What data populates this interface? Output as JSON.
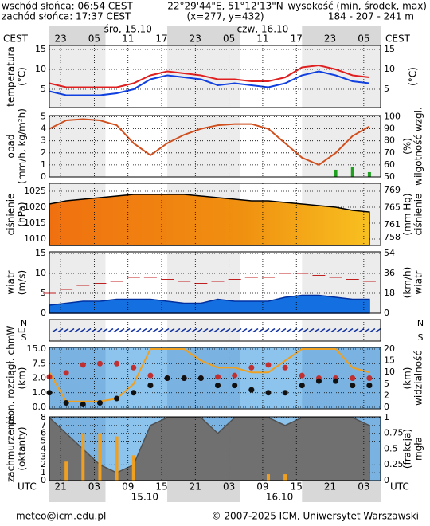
{
  "header": {
    "sunrise": "wschód słońca: 06:54 CEST",
    "sunset": "zachód słońca: 17:37 CEST",
    "coords": "22°29'44\"E, 51°12'13\"N",
    "grid": "(x=277, y=432)",
    "elev_label": "wysokość (min, środek, max)",
    "elev": "184 - 207 - 241 m"
  },
  "footer": {
    "email": "meteo@icm.edu.pl",
    "copyright": "© 2007-2025 ICM, Uniwersytet Warszawski"
  },
  "chart_data": {
    "type": "meteogram",
    "tz_top": "CEST",
    "tz_bottom": "UTC",
    "days_top": [
      {
        "value": 14,
        "label": "śro, 15.10"
      },
      {
        "value": 38,
        "label": "czw, 16.10"
      }
    ],
    "days_bottom": [
      {
        "value": 17,
        "label": "15.10"
      },
      {
        "value": 41,
        "label": "16.10"
      }
    ],
    "xlim": [
      0,
      59
    ],
    "xticks_top": [
      {
        "value": 2,
        "label": "23"
      },
      {
        "value": 8,
        "label": "05"
      },
      {
        "value": 14,
        "label": "11"
      },
      {
        "value": 20,
        "label": "17"
      },
      {
        "value": 26,
        "label": "23"
      },
      {
        "value": 32,
        "label": "05"
      },
      {
        "value": 38,
        "label": "11"
      },
      {
        "value": 44,
        "label": "17"
      },
      {
        "value": 50,
        "label": "23"
      },
      {
        "value": 56,
        "label": "05"
      }
    ],
    "xticks_bottom": [
      {
        "value": 2,
        "label": "21"
      },
      {
        "value": 8,
        "label": "03"
      },
      {
        "value": 14,
        "label": "09"
      },
      {
        "value": 20,
        "label": "15"
      },
      {
        "value": 26,
        "label": "21"
      },
      {
        "value": 32,
        "label": "03"
      },
      {
        "value": 38,
        "label": "09"
      },
      {
        "value": 44,
        "label": "15"
      },
      {
        "value": 50,
        "label": "21"
      },
      {
        "value": 56,
        "label": "03"
      }
    ],
    "x": [
      0,
      3,
      6,
      9,
      12,
      15,
      18,
      21,
      24,
      27,
      30,
      33,
      36,
      39,
      42,
      45,
      48,
      51,
      54,
      57
    ],
    "panels": [
      {
        "ylabel": [
          "temperatura",
          "(°C)"
        ],
        "y2label": [
          "(°C)"
        ],
        "ylim": [
          0.4,
          16
        ],
        "yticks": [
          5,
          10,
          15
        ],
        "y2lim": [
          0.4,
          16
        ],
        "y2ticks": [
          5,
          10,
          15
        ],
        "background": "#ffffff",
        "series": [
          {
            "kind": "line",
            "color": "#e02020",
            "values": [
              6.5,
              5.5,
              5.5,
              5.5,
              5.5,
              6.5,
              8.5,
              9.5,
              9,
              8.5,
              7.5,
              7.5,
              7,
              7,
              8,
              10.5,
              11,
              10,
              8.5,
              8
            ]
          },
          {
            "kind": "line",
            "color": "#1040e0",
            "values": [
              4.5,
              3.5,
              3.5,
              3.5,
              4,
              5,
              7.5,
              8.5,
              8,
              7.5,
              6,
              6.5,
              6,
              5.5,
              6.5,
              8.5,
              9.5,
              8.5,
              7,
              6.5
            ]
          }
        ]
      },
      {
        "ylabel": [
          "opad",
          "(mm/h, kg/m²h)"
        ],
        "y2label": [
          "(%)",
          "wilgotność wzgl."
        ],
        "ylim": [
          0,
          5.1
        ],
        "yticks": [
          0,
          1,
          2,
          3,
          4,
          5
        ],
        "y2lim": [
          50,
          101
        ],
        "y2ticks": [
          50,
          60,
          70,
          80,
          90,
          100
        ],
        "background": "#ffffff",
        "series": [
          {
            "kind": "bars",
            "color": "#20a020",
            "values": [
              0,
              0,
              0,
              0,
              0,
              0,
              0,
              0,
              0,
              0,
              0,
              0,
              0,
              0,
              0,
              0,
              0,
              0.6,
              0.8,
              0.4
            ]
          },
          {
            "kind": "line",
            "axis": "y2",
            "color": "#d05020",
            "values": [
              90,
              97,
              98,
              97,
              93,
              78,
              68,
              78,
              85,
              90,
              93,
              94,
              94,
              90,
              78,
              66,
              60,
              70,
              84,
              92
            ]
          }
        ]
      },
      {
        "ylabel": [
          "ciśnienie",
          "(hPa)"
        ],
        "y2label": [
          "(mm Hg)",
          "ciśnienie"
        ],
        "ylim": [
          1008,
          1027.5
        ],
        "yticks": [
          1010,
          1015,
          1020,
          1025
        ],
        "y2lim": [
          756.1,
          770.7
        ],
        "y2ticks": [
          758,
          761,
          765,
          769
        ],
        "background": "#ffffff",
        "series": [
          {
            "kind": "area",
            "color": "url(#pgrad)",
            "line": "#000000",
            "values": [
              1021,
              1022,
              1022.5,
              1023,
              1023.5,
              1024,
              1024,
              1024,
              1024,
              1023.5,
              1023,
              1022.5,
              1022,
              1022,
              1021.5,
              1021,
              1020.5,
              1020,
              1019,
              1018.5
            ]
          }
        ]
      },
      {
        "ylabel": [
          "wiatr",
          "(m/s)"
        ],
        "y2label": [
          "(km/h)",
          "wiatr"
        ],
        "ylim": [
          0,
          15.4
        ],
        "yticks": [
          0,
          5,
          10,
          15
        ],
        "y2lim": [
          0,
          55.4
        ],
        "y2ticks": [
          0,
          18,
          36,
          54
        ],
        "background": "#ffffff",
        "series": [
          {
            "kind": "area",
            "color": "#1470e0",
            "line": "#0030a0",
            "values": [
              2,
              2.5,
              3,
              3,
              3.5,
              3.5,
              3.5,
              3,
              2.5,
              2.5,
              3.5,
              3,
              3,
              3,
              4,
              4.5,
              4.5,
              4,
              3.5,
              3.5
            ]
          },
          {
            "kind": "dashes",
            "color": "#c02020",
            "values": [
              5,
              6,
              7,
              7.5,
              8,
              9,
              9,
              8.5,
              8,
              7.5,
              8,
              8.5,
              9,
              9,
              10,
              10,
              9.5,
              9,
              8.5,
              8
            ]
          }
        ]
      },
      {
        "ylabel": [
          "W",
          "E"
        ],
        "compass": [
          "N",
          "S"
        ],
        "background": "#ffffff",
        "series": []
      },
      {
        "ylabel": [
          "pion. rozciągł. chm.",
          "(km)"
        ],
        "y2label": [
          "(km)",
          "widzialność"
        ],
        "scale": "ticks",
        "yticks": [
          {
            "value": 0,
            "label": "0.0"
          },
          {
            "value": 1,
            "label": "1.0"
          },
          {
            "value": 2,
            "label": "2.0"
          },
          {
            "value": 7.5,
            "label": "7.5"
          },
          {
            "value": 15,
            "label": "15.0"
          }
        ],
        "y2ticks": [
          0,
          2,
          5,
          10,
          15,
          20
        ],
        "background": "#8cc4ee",
        "series": [
          {
            "kind": "line",
            "axis": "y2",
            "color": "#f0a020",
            "values": [
              10,
              1,
              1,
              1,
              1.5,
              5,
              20,
              20,
              20,
              15,
              12,
              12,
              10,
              10,
              15,
              20,
              20,
              20,
              12,
              10
            ]
          },
          {
            "kind": "dots",
            "color": "#c03030",
            "values": [
              2.5,
              4,
              7,
              7.5,
              7.5,
              6,
              3,
              2,
              2,
              2,
              2.5,
              3,
              6,
              7,
              6,
              3,
              2,
              2,
              2,
              2
            ]
          },
          {
            "kind": "dots",
            "color": "#101010",
            "values": [
              1,
              0.3,
              0.2,
              0.3,
              0.6,
              1,
              1.5,
              2,
              2,
              2,
              1.5,
              1.5,
              1.2,
              1,
              1,
              1.5,
              1.8,
              1.8,
              1.5,
              1.5
            ]
          }
        ]
      },
      {
        "ylabel": [
          "zachmurzenie",
          "(oktanty)"
        ],
        "y2label": [
          "(frakcja)",
          "mgła"
        ],
        "ylim": [
          0,
          8.1
        ],
        "yticks": [
          0,
          1,
          2,
          3,
          4,
          5,
          6,
          7,
          8
        ],
        "y2lim": [
          0,
          1.01
        ],
        "y2ticks": [
          0,
          0.25,
          0.5,
          0.75,
          1
        ],
        "background": "#8cc4ee",
        "series": [
          {
            "kind": "area",
            "color": "#707070",
            "line": "#505050",
            "values": [
              8,
              6,
              4,
              2,
              1,
              2,
              7,
              8,
              8,
              8,
              6,
              8,
              8,
              8,
              7,
              8,
              8,
              8,
              8,
              7
            ]
          },
          {
            "kind": "bars",
            "axis": "y2",
            "color": "#f0a020",
            "values": [
              0,
              0.3,
              0.75,
              0.75,
              0.7,
              0.4,
              0,
              0,
              0,
              0,
              0,
              0,
              0,
              0.1,
              0.1,
              0,
              0,
              0,
              0,
              0
            ]
          }
        ]
      }
    ]
  }
}
